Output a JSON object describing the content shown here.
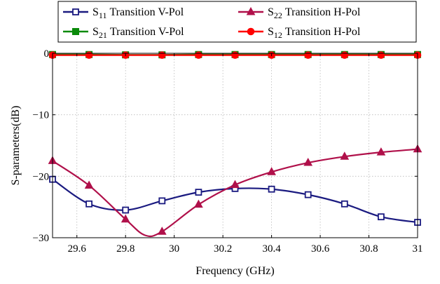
{
  "chart_data": {
    "type": "line",
    "title": "",
    "xlabel": "Frequency (GHz)",
    "ylabel": "S-parameters(dB)",
    "xlim": [
      29.5,
      31
    ],
    "ylim": [
      -30,
      0
    ],
    "xticks": [
      29.6,
      29.8,
      30,
      30.2,
      30.4,
      30.6,
      30.8,
      31
    ],
    "xtick_labels": [
      "29.6",
      "29.8",
      "30",
      "30.2",
      "30.4",
      "30.6",
      "30.8",
      "31"
    ],
    "yticks": [
      0,
      -10,
      -20,
      -30
    ],
    "ytick_labels": [
      "0",
      "−10",
      "−20",
      "−30"
    ],
    "grid": true,
    "legend_position": "top-center",
    "series": [
      {
        "id": "s11",
        "name": "S11 Transition V-Pol",
        "name_base": "S",
        "name_sub": "11",
        "name_rest": " Transition V-Pol",
        "color": "#1a1a80",
        "marker": "square-open",
        "points": [
          [
            29.5,
            -20.5
          ],
          [
            29.65,
            -24.5
          ],
          [
            29.8,
            -25.5
          ],
          [
            29.95,
            -24.0
          ],
          [
            30.1,
            -22.6
          ],
          [
            30.25,
            -22.0
          ],
          [
            30.4,
            -22.1
          ],
          [
            30.55,
            -23.0
          ],
          [
            30.7,
            -24.5
          ],
          [
            30.85,
            -26.6
          ],
          [
            31.0,
            -27.5
          ]
        ],
        "markers": [
          [
            29.5,
            -20.5
          ],
          [
            29.65,
            -24.5
          ],
          [
            29.8,
            -25.5
          ],
          [
            29.95,
            -24.0
          ],
          [
            30.1,
            -22.6
          ],
          [
            30.25,
            -22.0
          ],
          [
            30.4,
            -22.1
          ],
          [
            30.55,
            -23.0
          ],
          [
            30.7,
            -24.5
          ],
          [
            30.85,
            -26.6
          ],
          [
            31.0,
            -27.5
          ]
        ]
      },
      {
        "id": "s22",
        "name": "S22 Transition H-Pol",
        "name_base": "S",
        "name_sub": "22",
        "name_rest": " Transition H-Pol",
        "color": "#b0104a",
        "marker": "triangle",
        "points": [
          [
            29.5,
            -17.5
          ],
          [
            29.65,
            -21.5
          ],
          [
            29.8,
            -27.0
          ],
          [
            29.88,
            -29.6
          ],
          [
            29.95,
            -29.0
          ],
          [
            30.1,
            -24.6
          ],
          [
            30.25,
            -21.4
          ],
          [
            30.4,
            -19.3
          ],
          [
            30.55,
            -17.8
          ],
          [
            30.7,
            -16.8
          ],
          [
            30.85,
            -16.1
          ],
          [
            31.0,
            -15.6
          ]
        ],
        "markers": [
          [
            29.5,
            -17.5
          ],
          [
            29.65,
            -21.5
          ],
          [
            29.8,
            -27.0
          ],
          [
            29.95,
            -29.0
          ],
          [
            30.1,
            -24.6
          ],
          [
            30.25,
            -21.4
          ],
          [
            30.4,
            -19.3
          ],
          [
            30.55,
            -17.8
          ],
          [
            30.7,
            -16.8
          ],
          [
            30.85,
            -16.1
          ],
          [
            31.0,
            -15.6
          ]
        ]
      },
      {
        "id": "s21",
        "name": "S21 Transition V-Pol",
        "name_base": "S",
        "name_sub": "21",
        "name_rest": " Transition V-Pol",
        "color": "#0a8a0a",
        "marker": "square-filled",
        "points": [
          [
            29.5,
            -0.2
          ],
          [
            29.65,
            -0.2
          ],
          [
            29.8,
            -0.25
          ],
          [
            29.95,
            -0.25
          ],
          [
            30.1,
            -0.2
          ],
          [
            30.25,
            -0.2
          ],
          [
            30.4,
            -0.2
          ],
          [
            30.55,
            -0.2
          ],
          [
            30.7,
            -0.2
          ],
          [
            30.85,
            -0.2
          ],
          [
            31.0,
            -0.2
          ]
        ],
        "markers": [
          [
            29.5,
            -0.2
          ],
          [
            29.65,
            -0.2
          ],
          [
            29.8,
            -0.25
          ],
          [
            29.95,
            -0.25
          ],
          [
            30.1,
            -0.2
          ],
          [
            30.25,
            -0.2
          ],
          [
            30.4,
            -0.2
          ],
          [
            30.55,
            -0.2
          ],
          [
            30.7,
            -0.2
          ],
          [
            30.85,
            -0.2
          ],
          [
            31.0,
            -0.2
          ]
        ]
      },
      {
        "id": "s12",
        "name": "S12 Transition H-Pol",
        "name_base": "S",
        "name_sub": "12",
        "name_rest": " Transition H-Pol",
        "color": "#ff0000",
        "marker": "circle-filled",
        "points": [
          [
            29.5,
            -0.3
          ],
          [
            29.65,
            -0.3
          ],
          [
            29.8,
            -0.3
          ],
          [
            29.95,
            -0.3
          ],
          [
            30.1,
            -0.3
          ],
          [
            30.25,
            -0.3
          ],
          [
            30.4,
            -0.3
          ],
          [
            30.55,
            -0.3
          ],
          [
            30.7,
            -0.3
          ],
          [
            30.85,
            -0.3
          ],
          [
            31.0,
            -0.3
          ]
        ],
        "markers": [
          [
            29.5,
            -0.3
          ],
          [
            29.65,
            -0.3
          ],
          [
            29.8,
            -0.3
          ],
          [
            29.95,
            -0.3
          ],
          [
            30.1,
            -0.3
          ],
          [
            30.25,
            -0.3
          ],
          [
            30.4,
            -0.3
          ],
          [
            30.55,
            -0.3
          ],
          [
            30.7,
            -0.3
          ],
          [
            30.85,
            -0.3
          ],
          [
            31.0,
            -0.3
          ]
        ]
      }
    ],
    "legend_order": [
      "s11",
      "s22",
      "s21",
      "s12"
    ]
  }
}
